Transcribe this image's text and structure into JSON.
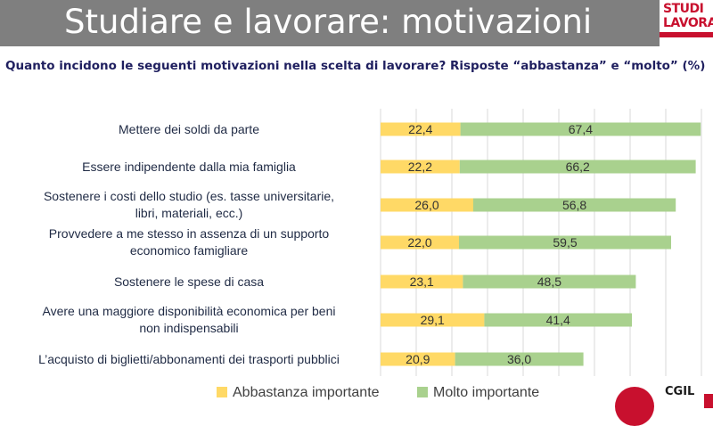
{
  "header": {
    "title": "Studiare e lavorare: motivazioni",
    "logo_line1": "STUDI",
    "logo_line2": "LAVORA"
  },
  "subtitle": "Quanto incidono le seguenti motivazioni nella scelta di lavorare? Risposte “abbastanza” e “molto” (%)",
  "footer": {
    "brand": "CGIL"
  },
  "colors": {
    "abbastanza": "#ffd966",
    "molto": "#a9d18e",
    "title_bg": "#7f7f7f"
  },
  "chart_data": {
    "type": "bar",
    "orientation": "horizontal",
    "stacked": true,
    "categories": [
      [
        "Mettere dei soldi da parte"
      ],
      [
        "Essere indipendente dalla mia famiglia"
      ],
      [
        "Sostenere i costi dello studio (es. tasse universitarie,",
        "libri, materiali, ecc.)"
      ],
      [
        "Provvedere a me stesso in assenza di un supporto",
        "economico famigliare"
      ],
      [
        "Sostenere le spese di casa"
      ],
      [
        "Avere una maggiore disponibilità economica per beni",
        "non indispensabili"
      ],
      [
        "L’acquisto di biglietti/abbonamenti dei trasporti pubblici"
      ]
    ],
    "series": [
      {
        "name": "Abbastanza importante",
        "values": [
          22.4,
          22.2,
          26.0,
          22.0,
          23.1,
          29.1,
          20.9
        ],
        "labels": [
          "22,4",
          "22,2",
          "26,0",
          "22,0",
          "23,1",
          "29,1",
          "20,9"
        ]
      },
      {
        "name": "Molto importante",
        "values": [
          67.4,
          66.2,
          56.8,
          59.5,
          48.5,
          41.4,
          36.0
        ],
        "labels": [
          "67,4",
          "66,2",
          "56,8",
          "59,5",
          "48,5",
          "41,4",
          "36,0"
        ]
      }
    ],
    "xlim": [
      0,
      90
    ],
    "gridlines": true,
    "legend_position": "bottom"
  }
}
